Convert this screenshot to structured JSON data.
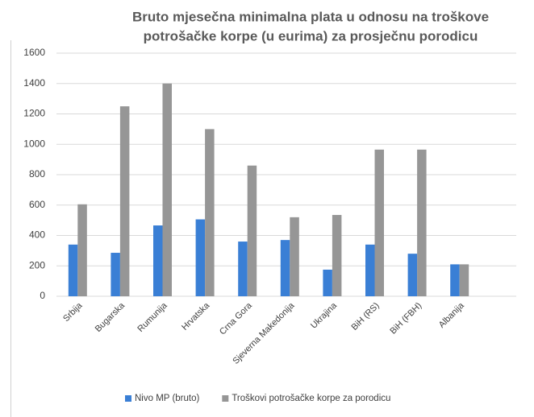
{
  "chart_data": {
    "type": "bar",
    "title": [
      "Bruto mjesečna minimalna plata u odnosu na troškove",
      "potrošačke korpe (u eurima) za prosječnu porodicu"
    ],
    "categories": [
      "Srbija",
      "Bugarska",
      "Rumunija",
      "Hrvatska",
      "Crna Gora",
      "Sjeverna Makedonija",
      "Ukrajina",
      "BiH (RS)",
      "BiH (FBH)",
      "Albanija"
    ],
    "series": [
      {
        "name": "Nivo MP (bruto)",
        "color": "#3a7fd5",
        "values": [
          340,
          286,
          466,
          506,
          360,
          370,
          175,
          340,
          280,
          210
        ]
      },
      {
        "name": "Troškovi potrošačke korpe za porodicu",
        "color": "#969696",
        "values": [
          605,
          1250,
          1400,
          1100,
          860,
          520,
          535,
          965,
          965,
          210
        ]
      }
    ],
    "ylim": [
      0,
      1600
    ],
    "yticks": [
      0,
      200,
      400,
      600,
      800,
      1000,
      1200,
      1400,
      1600
    ],
    "grid": true,
    "legend": "bottom"
  }
}
